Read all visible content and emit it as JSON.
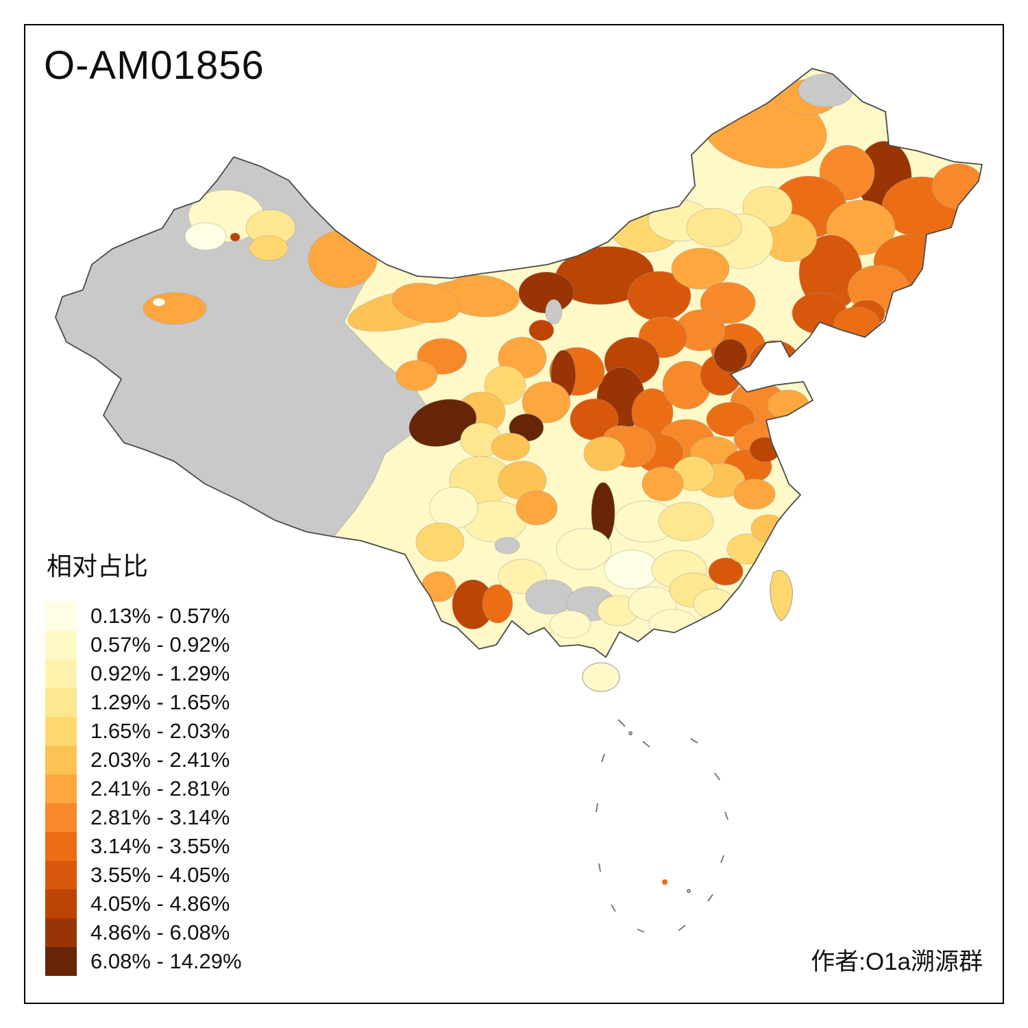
{
  "title": "O-AM01856",
  "legend": {
    "title": "相对占比",
    "items": [
      {
        "label": "0.13% - 0.57%",
        "color": "#FFFFE5"
      },
      {
        "label": "0.57% - 0.92%",
        "color": "#FFF9C7"
      },
      {
        "label": "0.92% - 1.29%",
        "color": "#FFF2AC"
      },
      {
        "label": "1.29% - 1.65%",
        "color": "#FEE78F"
      },
      {
        "label": "1.65% - 2.03%",
        "color": "#FED86F"
      },
      {
        "label": "2.03% - 2.41%",
        "color": "#FEC355"
      },
      {
        "label": "2.41% - 2.81%",
        "color": "#FEA73E"
      },
      {
        "label": "2.81% - 3.14%",
        "color": "#F8892A"
      },
      {
        "label": "3.14% - 3.55%",
        "color": "#EC6E14"
      },
      {
        "label": "3.55% - 4.05%",
        "color": "#D8580B"
      },
      {
        "label": "4.05% - 4.86%",
        "color": "#BC4405"
      },
      {
        "label": "4.86% - 6.08%",
        "color": "#993404"
      },
      {
        "label": "6.08% - 14.29%",
        "color": "#662506"
      }
    ]
  },
  "attribution": "作者:O1a溯源群",
  "map": {
    "no_data_color": "#C9C9C9",
    "border_color": "#4D4D4D",
    "boundary_color": "#9B9B9B"
  }
}
